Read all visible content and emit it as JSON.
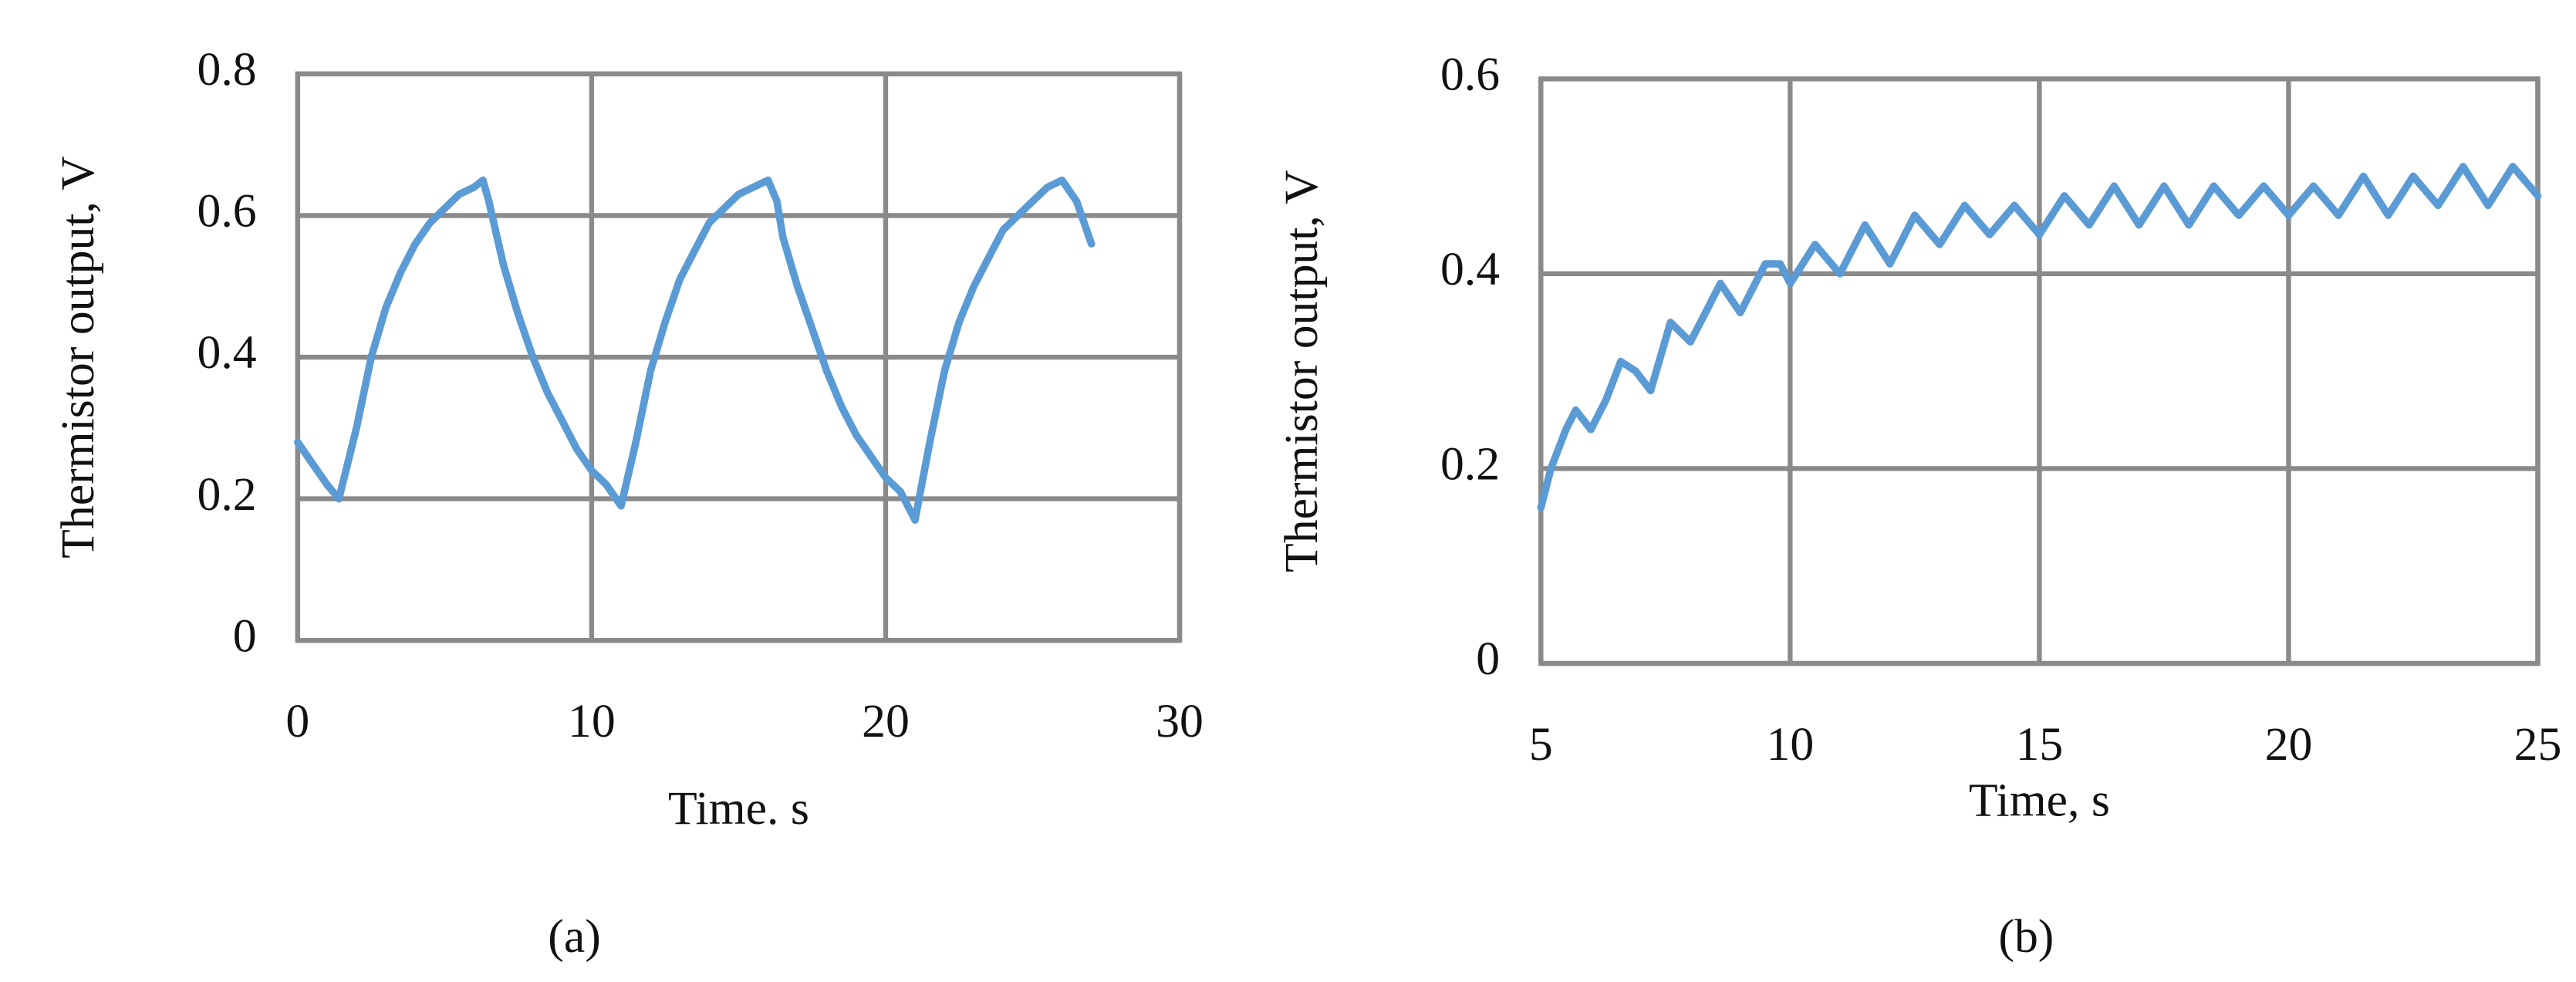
{
  "chart_data": [
    {
      "type": "line",
      "xlabel": "Time. s",
      "ylabel": "Thermistor output,  V",
      "panel_label": "(a)",
      "xlim": [
        0,
        30
      ],
      "xticks": [
        0,
        10,
        20,
        30
      ],
      "ylim": [
        0,
        0.8
      ],
      "yticks": [
        0,
        0.2,
        0.4,
        0.6,
        0.8
      ],
      "grid": true,
      "color": "#5b9bd5",
      "x": [
        0,
        0.5,
        1,
        1.4,
        2,
        2.5,
        3,
        3.5,
        4,
        4.5,
        5,
        5.5,
        6,
        6.3,
        6.5,
        7,
        7.5,
        8,
        8.5,
        9,
        9.5,
        10,
        10.5,
        11,
        11.5,
        12,
        12.5,
        13,
        13.5,
        14,
        14.5,
        15,
        15.5,
        16,
        16.3,
        16.5,
        17,
        17.5,
        18,
        18.5,
        19,
        19.5,
        20,
        20.5,
        21,
        21.5,
        22,
        22.5,
        23,
        23.5,
        24,
        24.5,
        25,
        25.5,
        26,
        26.5,
        27
      ],
      "values": [
        0.28,
        0.25,
        0.22,
        0.2,
        0.3,
        0.4,
        0.47,
        0.52,
        0.56,
        0.59,
        0.61,
        0.63,
        0.64,
        0.65,
        0.62,
        0.53,
        0.46,
        0.4,
        0.35,
        0.31,
        0.27,
        0.24,
        0.22,
        0.19,
        0.28,
        0.38,
        0.45,
        0.51,
        0.55,
        0.59,
        0.61,
        0.63,
        0.64,
        0.65,
        0.62,
        0.57,
        0.5,
        0.44,
        0.38,
        0.33,
        0.29,
        0.26,
        0.23,
        0.21,
        0.17,
        0.28,
        0.38,
        0.45,
        0.5,
        0.54,
        0.58,
        0.6,
        0.62,
        0.64,
        0.65,
        0.62,
        0.56
      ]
    },
    {
      "type": "line",
      "xlabel": "Time, s",
      "ylabel": "Thermistor output,  V",
      "panel_label": "(b)",
      "xlim": [
        5,
        25
      ],
      "xticks": [
        5,
        10,
        15,
        20,
        25
      ],
      "ylim": [
        0,
        0.6
      ],
      "yticks": [
        0,
        0.2,
        0.4,
        0.6
      ],
      "grid": true,
      "color": "#5b9bd5",
      "x": [
        5,
        5.2,
        5.5,
        5.7,
        6,
        6.3,
        6.6,
        6.9,
        7.2,
        7.6,
        8,
        8.3,
        8.6,
        9,
        9.5,
        9.8,
        10,
        10.5,
        11,
        11.5,
        12,
        12.5,
        13,
        13.5,
        14,
        14.5,
        15,
        15.5,
        16,
        16.5,
        17,
        17.5,
        18,
        18.5,
        19,
        19.5,
        20,
        20.5,
        21,
        21.5,
        22,
        22.5,
        23,
        23.5,
        24,
        24.5,
        25
      ],
      "values": [
        0.16,
        0.2,
        0.24,
        0.26,
        0.24,
        0.27,
        0.31,
        0.3,
        0.28,
        0.35,
        0.33,
        0.36,
        0.39,
        0.36,
        0.41,
        0.41,
        0.39,
        0.43,
        0.4,
        0.45,
        0.41,
        0.46,
        0.43,
        0.47,
        0.44,
        0.47,
        0.44,
        0.48,
        0.45,
        0.49,
        0.45,
        0.49,
        0.45,
        0.49,
        0.46,
        0.49,
        0.46,
        0.49,
        0.46,
        0.5,
        0.46,
        0.5,
        0.47,
        0.51,
        0.47,
        0.51,
        0.48
      ]
    }
  ]
}
